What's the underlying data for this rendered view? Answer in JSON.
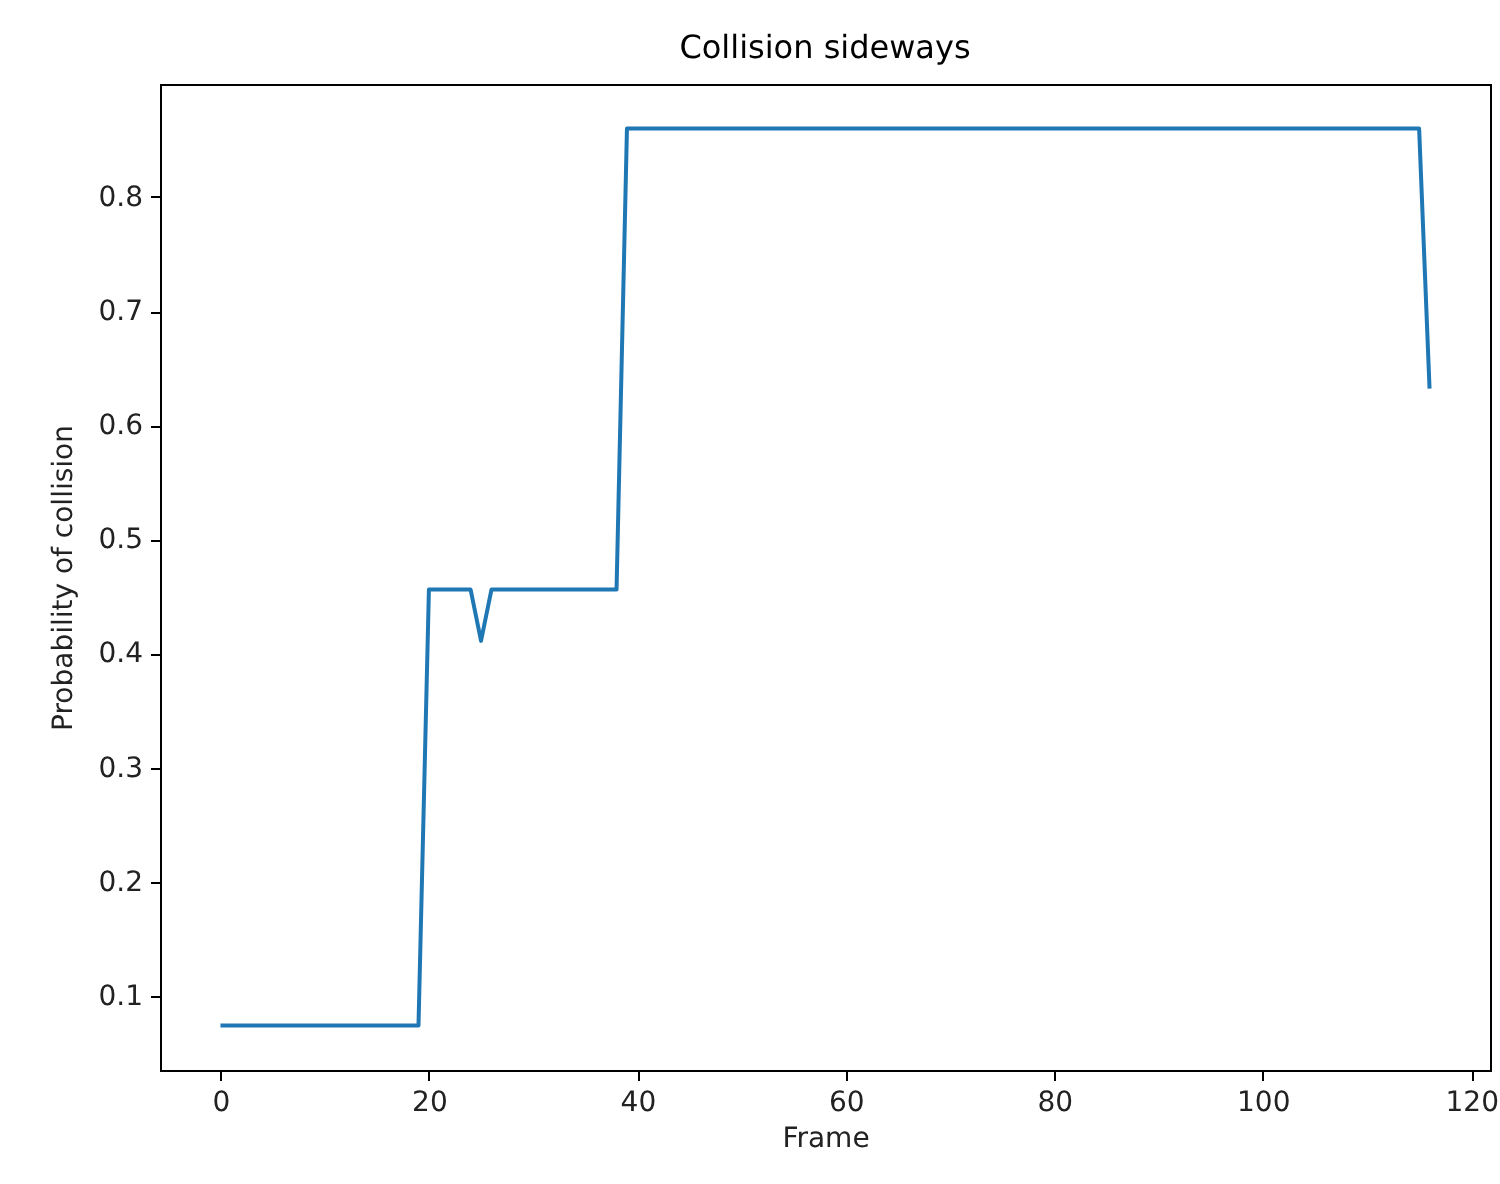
{
  "chart_data": {
    "type": "line",
    "title": "Collision sideways",
    "xlabel": "Frame",
    "ylabel": "Probability of collision",
    "x": [
      0,
      19,
      20,
      24,
      25,
      26,
      38,
      39,
      115,
      116
    ],
    "series": [
      {
        "color": "#1f77b4",
        "values": [
          0.074,
          0.074,
          0.456,
          0.456,
          0.411,
          0.456,
          0.456,
          0.86,
          0.86,
          0.632
        ]
      }
    ],
    "xlim": [
      -5.8,
      121.8
    ],
    "ylim": [
      0.035,
      0.899
    ],
    "xticks": [
      0,
      20,
      40,
      60,
      80,
      100,
      120
    ],
    "yticks": [
      0.1,
      0.2,
      0.3,
      0.4,
      0.5,
      0.6,
      0.7,
      0.8
    ],
    "grid": false,
    "marker": "none",
    "line_style": "solid"
  }
}
